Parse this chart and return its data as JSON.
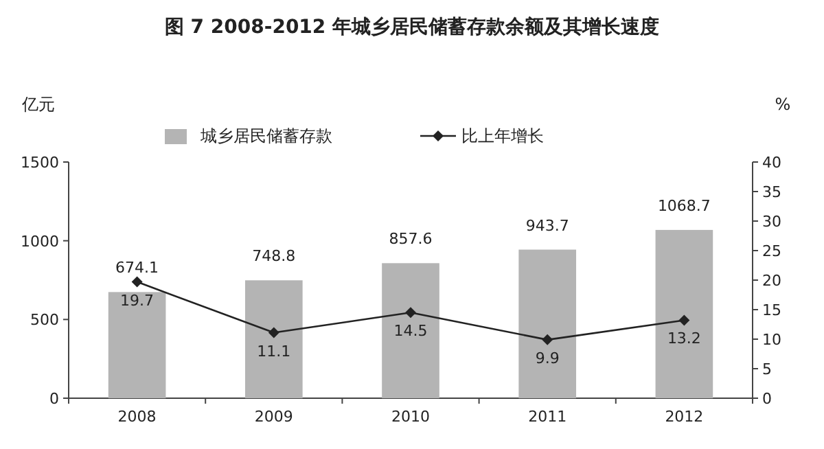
{
  "chart_data": {
    "type": "bar",
    "title": "图 7 2008-2012 年城乡居民储蓄存款余额及其增长速度",
    "ylabel": "亿元",
    "y2label": "%",
    "categories": [
      "2008",
      "2009",
      "2010",
      "2011",
      "2012"
    ],
    "series": [
      {
        "name": "城乡居民储蓄存款",
        "color": "#b4b4b4",
        "values": [
          674.1,
          748.8,
          857.6,
          943.7,
          1068.7
        ]
      },
      {
        "name": "比上年增长",
        "type": "line",
        "axis": "y2",
        "color": "#222222",
        "values": [
          19.7,
          11.1,
          14.5,
          9.9,
          13.2
        ]
      }
    ],
    "ylim": [
      0,
      1500
    ],
    "yticks": [
      0,
      500,
      1000,
      1500
    ],
    "y2lim": [
      0,
      40
    ],
    "y2ticks": [
      0,
      5,
      10,
      15,
      20,
      25,
      30,
      35,
      40
    ],
    "data_labels": true,
    "legend": "top",
    "marker": "diamond",
    "line_style": "solid",
    "grid": false
  }
}
